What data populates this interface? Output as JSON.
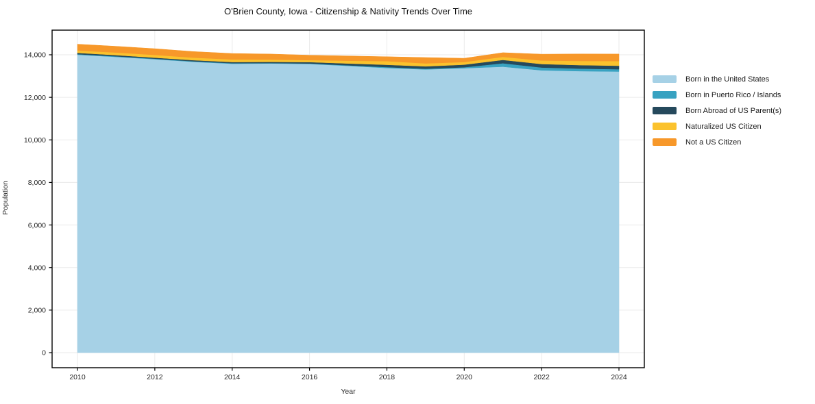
{
  "figure": {
    "title": "O'Brien County, Iowa - Citizenship & Nativity Trends Over Time",
    "xlabel": "Year",
    "ylabel": "Population"
  },
  "chart_data": {
    "type": "area",
    "stacked": true,
    "title": "O'Brien County, Iowa - Citizenship & Nativity Trends Over Time",
    "xlabel": "Year",
    "ylabel": "Population",
    "grid": true,
    "legend_position": "right-outside",
    "x": [
      2010,
      2011,
      2012,
      2013,
      2014,
      2015,
      2016,
      2017,
      2018,
      2019,
      2020,
      2021,
      2022,
      2023,
      2024
    ],
    "x_ticks": [
      2010,
      2012,
      2014,
      2016,
      2018,
      2020,
      2022,
      2024
    ],
    "y_ticks": [
      0,
      2000,
      4000,
      6000,
      8000,
      10000,
      12000,
      14000
    ],
    "y_tick_labels": [
      "0",
      "2,000",
      "4,000",
      "6,000",
      "8,000",
      "10,000",
      "12,000",
      "14,000"
    ],
    "xlim": [
      2009.3,
      2024.7
    ],
    "ylim": [
      0,
      15150
    ],
    "series": [
      {
        "name": "Born in the United States",
        "color": "#a6d1e6",
        "values": [
          14000,
          13900,
          13790,
          13670,
          13580,
          13590,
          13570,
          13480,
          13380,
          13310,
          13370,
          13440,
          13270,
          13230,
          13210
        ]
      },
      {
        "name": "Born in Puerto Rico / Islands",
        "color": "#38a2c1",
        "values": [
          30,
          30,
          25,
          25,
          25,
          20,
          20,
          25,
          40,
          35,
          45,
          160,
          130,
          120,
          110
        ]
      },
      {
        "name": "Born Abroad of US Parent(s)",
        "color": "#25495c",
        "values": [
          60,
          55,
          50,
          50,
          55,
          55,
          65,
          85,
          110,
          110,
          120,
          160,
          165,
          165,
          165
        ]
      },
      {
        "name": "Naturalized US Citizen",
        "color": "#fbc22d",
        "values": [
          110,
          120,
          130,
          120,
          120,
          110,
          95,
          130,
          170,
          140,
          125,
          140,
          165,
          195,
          220
        ]
      },
      {
        "name": "Not a US Citizen",
        "color": "#f7982a",
        "values": [
          300,
          295,
          290,
          285,
          280,
          260,
          230,
          225,
          210,
          275,
          175,
          200,
          300,
          330,
          330
        ]
      }
    ],
    "colors": {
      "grid": "#eaeaea",
      "spine": "#000000",
      "background": "#ffffff"
    }
  }
}
